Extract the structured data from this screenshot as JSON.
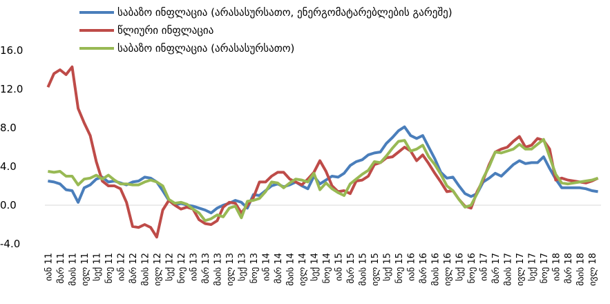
{
  "chart_data": {
    "type": "line",
    "categories": [
      "იან 11",
      null,
      "მარ 11",
      null,
      "მაის 11",
      null,
      "ივლ 11",
      null,
      "სექ 11",
      null,
      "ნოე 11",
      null,
      "იან 12",
      null,
      "მარ 12",
      null,
      "მაის 12",
      null,
      "ივლ 12",
      null,
      "სექ 12",
      null,
      "ნოე 12",
      null,
      "იან 13",
      null,
      "მარ 13",
      null,
      "მაის 13",
      null,
      "ივლ 13",
      null,
      "სექ 13",
      null,
      "ნოე 13",
      null,
      "იან 14",
      null,
      "მარ 14",
      null,
      "მაის 14",
      null,
      "ივლ 14",
      null,
      "სექ 14",
      null,
      "ნოე 14",
      null,
      "იან 15",
      null,
      "მარ 15",
      null,
      "მაის 15",
      null,
      "ივლ 15",
      null,
      "სექ 15",
      null,
      "ნოე 15",
      null,
      "იან 16",
      null,
      "მარ 16",
      null,
      "მაის 16",
      null,
      "ივლ 16",
      null,
      "სექ 16",
      null,
      "ნოე 16",
      null,
      "იან 17",
      null,
      "მარ 17",
      null,
      "მაის 17",
      null,
      "ივლ 17",
      null,
      "სექ 17",
      null,
      "ნოე 17",
      null,
      "იან 18",
      null,
      "მარ 18",
      null,
      "მაის 18",
      null,
      "ივლ 18",
      null
    ],
    "series": [
      {
        "name": "საბაზო ინფლაცია (არასასურსათო, ენერგომატარებლების გარეშე)",
        "color": "#4a7ebb",
        "values": [
          2.5,
          2.4,
          2.2,
          1.6,
          1.5,
          0.3,
          1.8,
          2.1,
          2.7,
          2.9,
          2.4,
          2.5,
          2.3,
          2.1,
          2.4,
          2.5,
          2.9,
          2.8,
          2.4,
          1.5,
          0.5,
          0.0,
          0.2,
          0.0,
          -0.1,
          -0.3,
          -0.5,
          -0.8,
          -0.3,
          0.0,
          0.2,
          0.5,
          0.3,
          -0.3,
          1.1,
          1.0,
          1.5,
          2.0,
          2.2,
          1.9,
          2.1,
          2.4,
          2.0,
          1.7,
          3.0,
          2.2,
          2.6,
          3.0,
          2.9,
          3.3,
          4.1,
          4.5,
          4.7,
          5.2,
          5.4,
          5.5,
          6.4,
          7.0,
          7.7,
          8.1,
          7.2,
          6.9,
          7.2,
          6.0,
          4.8,
          3.4,
          2.8,
          2.9,
          2.0,
          1.2,
          0.9,
          1.2,
          2.4,
          2.8,
          3.3,
          3.0,
          3.6,
          4.2,
          4.6,
          4.3,
          4.4,
          4.4,
          5.0,
          3.8,
          2.7,
          1.8,
          1.8,
          1.8,
          1.8,
          1.7,
          1.5,
          1.4
        ]
      },
      {
        "name": "წლიური ინფლაცია",
        "color": "#be4b48",
        "values": [
          12.2,
          13.6,
          14.0,
          13.5,
          14.3,
          10.0,
          8.5,
          7.2,
          4.5,
          2.5,
          2.0,
          2.0,
          1.7,
          0.3,
          -2.2,
          -2.3,
          -2.0,
          -2.3,
          -3.3,
          -0.5,
          0.5,
          0.0,
          -0.4,
          -0.2,
          -0.4,
          -1.5,
          -1.9,
          -2.0,
          -1.6,
          -0.2,
          0.3,
          0.2,
          -0.8,
          0.0,
          0.8,
          2.4,
          2.4,
          3.0,
          3.4,
          3.4,
          2.7,
          2.4,
          2.1,
          2.7,
          3.4,
          4.6,
          3.5,
          2.0,
          1.4,
          1.5,
          1.2,
          2.5,
          2.6,
          3.0,
          4.2,
          4.4,
          4.9,
          5.0,
          5.5,
          6.0,
          5.6,
          4.6,
          5.2,
          4.3,
          3.3,
          2.4,
          1.4,
          1.5,
          0.6,
          -0.1,
          -0.3,
          1.4,
          2.6,
          4.2,
          5.5,
          5.8,
          6.0,
          6.6,
          7.1,
          6.0,
          6.2,
          6.9,
          6.7,
          5.8,
          2.6,
          2.8,
          2.6,
          2.5,
          2.4,
          2.3,
          2.5,
          2.8
        ]
      },
      {
        "name": "საბაზო ინფლაცია (არასასურსათო)",
        "color": "#98b954",
        "values": [
          3.5,
          3.4,
          3.5,
          3.0,
          3.0,
          2.1,
          2.7,
          2.8,
          3.1,
          2.7,
          3.1,
          2.6,
          2.2,
          2.2,
          2.1,
          2.1,
          2.4,
          2.6,
          2.4,
          2.0,
          0.6,
          0.2,
          0.3,
          0.1,
          -0.4,
          -0.8,
          -1.6,
          -1.4,
          -1.0,
          -1.2,
          -0.3,
          -0.1,
          -1.3,
          0.4,
          0.5,
          0.7,
          1.4,
          2.4,
          2.3,
          1.8,
          2.3,
          2.7,
          2.6,
          2.4,
          3.3,
          1.6,
          2.3,
          1.7,
          1.3,
          1.0,
          2.2,
          2.7,
          3.2,
          3.6,
          4.5,
          4.4,
          5.1,
          5.9,
          6.6,
          6.7,
          5.6,
          5.8,
          6.2,
          5.0,
          4.2,
          3.2,
          2.0,
          1.5,
          0.6,
          -0.2,
          0.0,
          1.2,
          2.8,
          4.0,
          5.5,
          5.4,
          5.6,
          5.8,
          6.3,
          5.8,
          5.8,
          6.3,
          6.8,
          5.0,
          3.2,
          2.3,
          2.2,
          2.3,
          2.4,
          2.5,
          2.6,
          2.8
        ]
      }
    ],
    "ylim": [
      -4,
      16
    ],
    "yticks": [
      {
        "value": -4,
        "label": "-4.0"
      },
      {
        "value": 0,
        "label": "0.0"
      },
      {
        "value": 4,
        "label": "4.0"
      },
      {
        "value": 8,
        "label": "8.0"
      },
      {
        "value": 12,
        "label": "12.0"
      },
      {
        "value": 16,
        "label": "16.0"
      }
    ],
    "legend": "top-left"
  }
}
